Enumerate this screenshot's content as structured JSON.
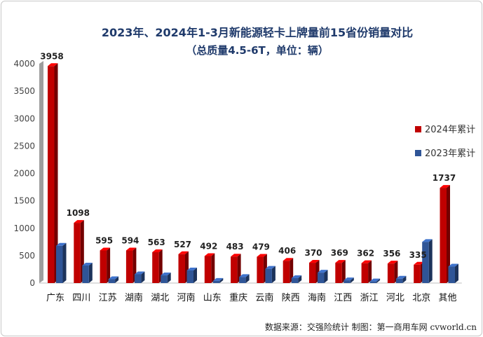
{
  "chart_data": {
    "type": "bar",
    "title": "2023年、2024年1-3月新能源轻卡上牌量前15省份销量对比",
    "subtitle": "（总质量4.5-6T，单位：辆）",
    "categories": [
      "广东",
      "四川",
      "江苏",
      "湖南",
      "湖北",
      "河南",
      "山东",
      "重庆",
      "云南",
      "陕西",
      "海南",
      "江西",
      "浙江",
      "河北",
      "北京",
      "其他"
    ],
    "series": [
      {
        "name": "2024年累计",
        "color": "#c00000",
        "values": [
          3958,
          1098,
          595,
          594,
          563,
          527,
          492,
          483,
          479,
          406,
          370,
          369,
          362,
          356,
          335,
          1737
        ]
      },
      {
        "name": "2023年累计",
        "color": "#2f5597",
        "values": [
          680,
          320,
          70,
          160,
          140,
          230,
          40,
          110,
          260,
          90,
          190,
          50,
          30,
          80,
          750,
          300
        ]
      }
    ],
    "data_labels": [
      "3958",
      "1098",
      "595",
      "594",
      "563",
      "527",
      "492",
      "483",
      "479",
      "406",
      "370",
      "369",
      "362",
      "356",
      "335",
      "1737"
    ],
    "ylim": [
      0,
      4000
    ],
    "yticks": [
      "0",
      "500",
      "1000",
      "1500",
      "2000",
      "2500",
      "3000",
      "3500",
      "4000"
    ],
    "grid": false,
    "legend_position": "right",
    "source_note": "数据来源：交强险统计 制图：第一商用车网 cvworld.cn"
  }
}
